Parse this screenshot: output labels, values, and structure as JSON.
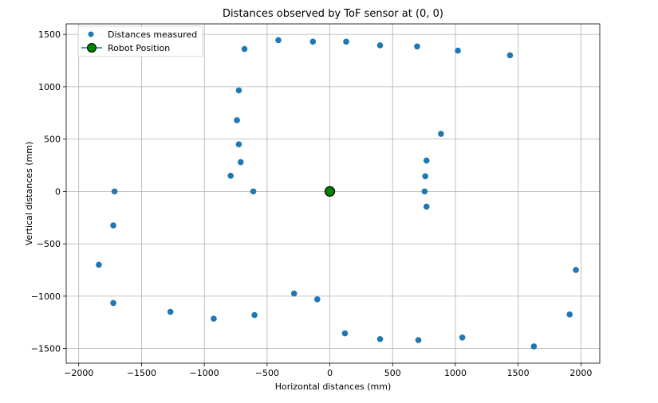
{
  "chart_data": {
    "type": "scatter",
    "title": "Distances observed by ToF sensor at (0, 0)",
    "xlabel": "Horizontal distances (mm)",
    "ylabel": "Vertical distances (mm)",
    "xlim": [
      -2100,
      2150
    ],
    "ylim": [
      -1640,
      1600
    ],
    "xticks": [
      -2000,
      -1500,
      -1000,
      -500,
      0,
      500,
      1000,
      1500,
      2000
    ],
    "yticks": [
      -1500,
      -1000,
      -500,
      0,
      500,
      1000,
      1500
    ],
    "xtick_labels": [
      "−2000",
      "−1500",
      "−1000",
      "−500",
      "0",
      "500",
      "1000",
      "1500",
      "2000"
    ],
    "ytick_labels": [
      "−1500",
      "−1000",
      "−500",
      "0",
      "500",
      "1000",
      "1500"
    ],
    "grid": true,
    "legend_position": "top-left",
    "series": [
      {
        "name": "Distances measured",
        "color": "#1f77b4",
        "marker": "circle",
        "points": [
          [
            -1715,
            0
          ],
          [
            -1725,
            -325
          ],
          [
            -1840,
            -700
          ],
          [
            -1725,
            -1065
          ],
          [
            -1270,
            -1150
          ],
          [
            -925,
            -1215
          ],
          [
            -600,
            -1180
          ],
          [
            -285,
            -975
          ],
          [
            -100,
            -1030
          ],
          [
            120,
            -1355
          ],
          [
            400,
            -1410
          ],
          [
            705,
            -1420
          ],
          [
            1055,
            -1395
          ],
          [
            1625,
            -1480
          ],
          [
            1910,
            -1175
          ],
          [
            1960,
            -750
          ],
          [
            770,
            -145
          ],
          [
            755,
            0
          ],
          [
            760,
            145
          ],
          [
            770,
            295
          ],
          [
            885,
            550
          ],
          [
            -610,
            0
          ],
          [
            -790,
            150
          ],
          [
            -710,
            280
          ],
          [
            -725,
            450
          ],
          [
            -740,
            680
          ],
          [
            -725,
            965
          ],
          [
            -680,
            1360
          ],
          [
            -410,
            1445
          ],
          [
            -135,
            1430
          ],
          [
            130,
            1430
          ],
          [
            400,
            1395
          ],
          [
            695,
            1385
          ],
          [
            1020,
            1345
          ],
          [
            1435,
            1300
          ]
        ]
      },
      {
        "name": "Robot Position",
        "color": "#008000",
        "edge_color": "#000000",
        "marker": "circle-large",
        "points": [
          [
            0,
            0
          ]
        ]
      }
    ]
  }
}
